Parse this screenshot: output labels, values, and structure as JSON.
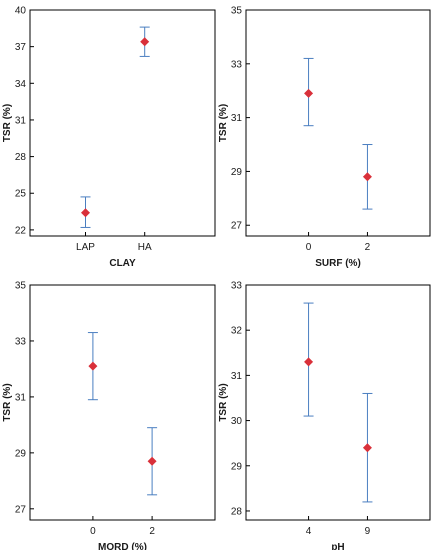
{
  "style": {
    "marker_color": "#d9303a",
    "errorbar_color": "#4a7ec0",
    "frame_color": "#000000"
  },
  "chart_data": [
    {
      "type": "scatter",
      "xlabel": "CLAY",
      "ylabel": "TSR (%)",
      "categories": [
        "LAP",
        "HA"
      ],
      "ylim": [
        21.5,
        40
      ],
      "yticks": [
        "22",
        "25",
        "28",
        "31",
        "34",
        "37",
        "40"
      ],
      "points": [
        {
          "category": "LAP",
          "mean": 23.4,
          "lower": 22.2,
          "upper": 24.7
        },
        {
          "category": "HA",
          "mean": 37.4,
          "lower": 36.2,
          "upper": 38.6
        }
      ]
    },
    {
      "type": "scatter",
      "xlabel": "SURF (%)",
      "ylabel": "TSR (%)",
      "categories": [
        "0",
        "2"
      ],
      "ylim": [
        26.6,
        35
      ],
      "yticks": [
        "27",
        "29",
        "31",
        "33",
        "35"
      ],
      "points": [
        {
          "category": "0",
          "mean": 31.9,
          "lower": 30.7,
          "upper": 33.2
        },
        {
          "category": "2",
          "mean": 28.8,
          "lower": 27.6,
          "upper": 30.0
        }
      ]
    },
    {
      "type": "scatter",
      "xlabel": "MORD (%)",
      "ylabel": "TSR (%)",
      "categories": [
        "0",
        "2"
      ],
      "ylim": [
        26.6,
        35
      ],
      "yticks": [
        "27",
        "29",
        "31",
        "33",
        "35"
      ],
      "points": [
        {
          "category": "0",
          "mean": 32.1,
          "lower": 30.9,
          "upper": 33.3
        },
        {
          "category": "2",
          "mean": 28.7,
          "lower": 27.5,
          "upper": 29.9
        }
      ]
    },
    {
      "type": "scatter",
      "xlabel": "pH",
      "ylabel": "TSR (%)",
      "categories": [
        "4",
        "9"
      ],
      "ylim": [
        27.8,
        33
      ],
      "yticks": [
        "28",
        "29",
        "30",
        "31",
        "32",
        "33"
      ],
      "points": [
        {
          "category": "4",
          "mean": 31.3,
          "lower": 30.1,
          "upper": 32.6
        },
        {
          "category": "9",
          "mean": 29.4,
          "lower": 28.2,
          "upper": 30.6
        }
      ]
    }
  ]
}
